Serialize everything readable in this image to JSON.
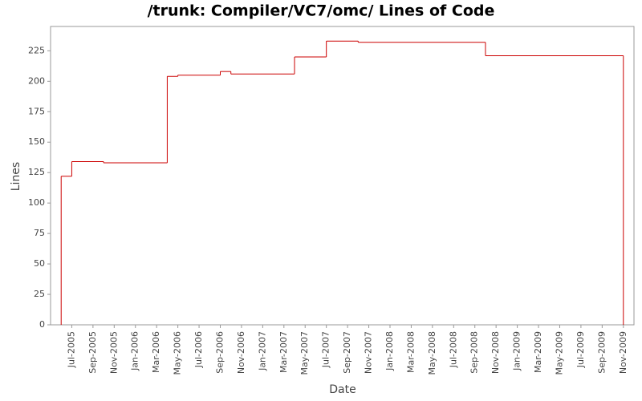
{
  "chart_data": {
    "type": "step",
    "title": "/trunk: Compiler/VC7/omc/ Lines of Code",
    "x_label": "Date",
    "y_label": "Lines",
    "series": [
      {
        "name": "Lines",
        "color": "#cc0000",
        "x": [
          "2005-06",
          "2005-06",
          "2005-07",
          "2005-10",
          "2006-04",
          "2006-05",
          "2006-09",
          "2006-10",
          "2007-04",
          "2007-07",
          "2007-10",
          "2008-10",
          "2009-11"
        ],
        "values": [
          0,
          122,
          134,
          133,
          204,
          205,
          208,
          206,
          220,
          233,
          232,
          221,
          0
        ]
      }
    ],
    "xlim": [
      "2005-05",
      "2009-12"
    ],
    "xticks": [
      {
        "value": "2005-07",
        "label": "Jul-2005"
      },
      {
        "value": "2005-09",
        "label": "Sep-2005"
      },
      {
        "value": "2005-11",
        "label": "Nov-2005"
      },
      {
        "value": "2006-01",
        "label": "Jan-2006"
      },
      {
        "value": "2006-03",
        "label": "Mar-2006"
      },
      {
        "value": "2006-05",
        "label": "May-2006"
      },
      {
        "value": "2006-07",
        "label": "Jul-2006"
      },
      {
        "value": "2006-09",
        "label": "Sep-2006"
      },
      {
        "value": "2006-11",
        "label": "Nov-2006"
      },
      {
        "value": "2007-01",
        "label": "Jan-2007"
      },
      {
        "value": "2007-03",
        "label": "Mar-2007"
      },
      {
        "value": "2007-05",
        "label": "May-2007"
      },
      {
        "value": "2007-07",
        "label": "Jul-2007"
      },
      {
        "value": "2007-09",
        "label": "Sep-2007"
      },
      {
        "value": "2007-11",
        "label": "Nov-2007"
      },
      {
        "value": "2008-01",
        "label": "Jan-2008"
      },
      {
        "value": "2008-03",
        "label": "Mar-2008"
      },
      {
        "value": "2008-05",
        "label": "May-2008"
      },
      {
        "value": "2008-07",
        "label": "Jul-2008"
      },
      {
        "value": "2008-09",
        "label": "Sep-2008"
      },
      {
        "value": "2008-11",
        "label": "Nov-2008"
      },
      {
        "value": "2009-01",
        "label": "Jan-2009"
      },
      {
        "value": "2009-03",
        "label": "Mar-2009"
      },
      {
        "value": "2009-05",
        "label": "May-2009"
      },
      {
        "value": "2009-07",
        "label": "Jul-2009"
      },
      {
        "value": "2009-09",
        "label": "Sep-2009"
      },
      {
        "value": "2009-11",
        "label": "Nov-2009"
      }
    ],
    "ylim": [
      0,
      245
    ],
    "yticks": [
      0,
      25,
      50,
      75,
      100,
      125,
      150,
      175,
      200,
      225
    ]
  }
}
